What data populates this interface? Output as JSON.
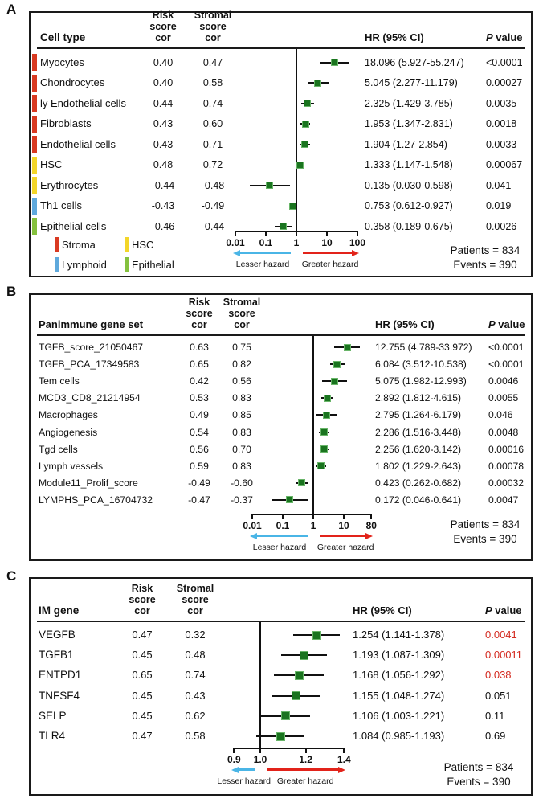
{
  "colors": {
    "marker_green": "#1a741f",
    "marker_edge": "#69b569",
    "ci_line": "#111111",
    "reference_line": "#111111",
    "stroma": "#d93a22",
    "hsc": "#f3d629",
    "lymphoid": "#5fa9dc",
    "epithelial": "#85c13e",
    "p_highlight": "#d42a20",
    "lesser_arrow": "#4ab5e6",
    "greater_arrow": "#e2231a"
  },
  "chart_data": [
    {
      "type": "forest",
      "letter": "A",
      "label_header": "Cell type",
      "risk_header": "Risk\nscore\ncor",
      "stromal_header": "Stromal\nscore\ncor",
      "hr_header": "HR (95% CI)",
      "p_header_italic": "P",
      "p_header_rest": " value",
      "axis": {
        "scale": "log",
        "ticks": [
          "0.01",
          "0.1",
          "1",
          "10",
          "100"
        ],
        "tick_values": [
          0.01,
          0.1,
          1,
          10,
          100
        ],
        "reference": 1,
        "lesser_label": "Lesser hazard",
        "greater_label": "Greater hazard"
      },
      "rows": [
        {
          "label": "Myocytes",
          "group": "stroma",
          "risk_cor": "0.40",
          "stromal_cor": "0.47",
          "hr": 18.096,
          "ci_low": 5.927,
          "ci_high": 55.247,
          "hr_ci_text": "18.096 (5.927-55.247)",
          "p_value": "<0.0001",
          "p_highlight": false
        },
        {
          "label": "Chondrocytes",
          "group": "stroma",
          "risk_cor": "0.40",
          "stromal_cor": "0.58",
          "hr": 5.045,
          "ci_low": 2.277,
          "ci_high": 11.179,
          "hr_ci_text": "5.045 (2.277-11.179)",
          "p_value": "0.00027",
          "p_highlight": false
        },
        {
          "label": "ly Endothelial cells",
          "group": "stroma",
          "risk_cor": "0.44",
          "stromal_cor": "0.74",
          "hr": 2.325,
          "ci_low": 1.429,
          "ci_high": 3.785,
          "hr_ci_text": "2.325 (1.429-3.785)",
          "p_value": "0.0035",
          "p_highlight": false
        },
        {
          "label": "Fibroblasts",
          "group": "stroma",
          "risk_cor": "0.43",
          "stromal_cor": "0.60",
          "hr": 1.953,
          "ci_low": 1.347,
          "ci_high": 2.831,
          "hr_ci_text": "1.953 (1.347-2.831)",
          "p_value": "0.0018",
          "p_highlight": false
        },
        {
          "label": "Endothelial cells",
          "group": "stroma",
          "risk_cor": "0.43",
          "stromal_cor": "0.71",
          "hr": 1.904,
          "ci_low": 1.27,
          "ci_high": 2.854,
          "hr_ci_text": "1.904 (1.27-2.854)",
          "p_value": "0.0033",
          "p_highlight": false
        },
        {
          "label": "HSC",
          "group": "hsc",
          "risk_cor": "0.48",
          "stromal_cor": "0.72",
          "hr": 1.333,
          "ci_low": 1.147,
          "ci_high": 1.548,
          "hr_ci_text": "1.333 (1.147-1.548)",
          "p_value": "0.00067",
          "p_highlight": false
        },
        {
          "label": "Erythrocytes",
          "group": "hsc",
          "risk_cor": "-0.44",
          "stromal_cor": "-0.48",
          "hr": 0.135,
          "ci_low": 0.03,
          "ci_high": 0.598,
          "hr_ci_text": "0.135 (0.030-0.598)",
          "p_value": "0.041",
          "p_highlight": false
        },
        {
          "label": "Th1 cells",
          "group": "lymphoid",
          "risk_cor": "-0.43",
          "stromal_cor": "-0.49",
          "hr": 0.753,
          "ci_low": 0.612,
          "ci_high": 0.927,
          "hr_ci_text": "0.753 (0.612-0.927)",
          "p_value": "0.019",
          "p_highlight": false
        },
        {
          "label": "Epithelial cells",
          "group": "epithelial",
          "risk_cor": "-0.46",
          "stromal_cor": "-0.44",
          "hr": 0.358,
          "ci_low": 0.189,
          "ci_high": 0.675,
          "hr_ci_text": "0.358 (0.189-0.675)",
          "p_value": "0.0026",
          "p_highlight": false
        }
      ],
      "legend": [
        {
          "label": "Stroma",
          "color_key": "stroma"
        },
        {
          "label": "HSC",
          "color_key": "hsc"
        },
        {
          "label": "Lymphoid",
          "color_key": "lymphoid"
        },
        {
          "label": "Epithelial",
          "color_key": "epithelial"
        }
      ],
      "patients": "Patients = 834",
      "events": "Events = 390"
    },
    {
      "type": "forest",
      "letter": "B",
      "label_header": "Panimmune gene set",
      "risk_header": "Risk\nscore\ncor",
      "stromal_header": "Stromal\nscore\ncor",
      "hr_header": "HR (95% CI)",
      "p_header_italic": "P",
      "p_header_rest": " value",
      "axis": {
        "scale": "log",
        "ticks": [
          "0.01",
          "0.1",
          "1",
          "10",
          "80"
        ],
        "tick_values": [
          0.01,
          0.1,
          1,
          10,
          80
        ],
        "reference": 1,
        "lesser_label": "Lesser hazard",
        "greater_label": "Greater hazard"
      },
      "rows": [
        {
          "label": "TGFB_score_21050467",
          "risk_cor": "0.63",
          "stromal_cor": "0.75",
          "hr": 12.755,
          "ci_low": 4.789,
          "ci_high": 33.972,
          "hr_ci_text": "12.755 (4.789-33.972)",
          "p_value": "<0.0001",
          "p_highlight": false
        },
        {
          "label": "TGFB_PCA_17349583",
          "risk_cor": "0.65",
          "stromal_cor": "0.82",
          "hr": 6.084,
          "ci_low": 3.512,
          "ci_high": 10.538,
          "hr_ci_text": "6.084 (3.512-10.538)",
          "p_value": "<0.0001",
          "p_highlight": false
        },
        {
          "label": "Tem cells",
          "risk_cor": "0.42",
          "stromal_cor": "0.56",
          "hr": 5.075,
          "ci_low": 1.982,
          "ci_high": 12.993,
          "hr_ci_text": "5.075 (1.982-12.993)",
          "p_value": "0.0046",
          "p_highlight": false
        },
        {
          "label": "MCD3_CD8_21214954",
          "risk_cor": "0.53",
          "stromal_cor": "0.83",
          "hr": 2.892,
          "ci_low": 1.812,
          "ci_high": 4.615,
          "hr_ci_text": "2.892 (1.812-4.615)",
          "p_value": "0.0055",
          "p_highlight": false
        },
        {
          "label": "Macrophages",
          "risk_cor": "0.49",
          "stromal_cor": "0.85",
          "hr": 2.795,
          "ci_low": 1.264,
          "ci_high": 6.179,
          "hr_ci_text": "2.795 (1.264-6.179)",
          "p_value": "0.046",
          "p_highlight": false
        },
        {
          "label": "Angiogenesis",
          "risk_cor": "0.54",
          "stromal_cor": "0.83",
          "hr": 2.286,
          "ci_low": 1.516,
          "ci_high": 3.448,
          "hr_ci_text": "2.286 (1.516-3.448)",
          "p_value": "0.0048",
          "p_highlight": false
        },
        {
          "label": "Tgd cells",
          "risk_cor": "0.56",
          "stromal_cor": "0.70",
          "hr": 2.256,
          "ci_low": 1.62,
          "ci_high": 3.142,
          "hr_ci_text": "2.256 (1.620-3.142)",
          "p_value": "0.00016",
          "p_highlight": false
        },
        {
          "label": "Lymph vessels",
          "risk_cor": "0.59",
          "stromal_cor": "0.83",
          "hr": 1.802,
          "ci_low": 1.229,
          "ci_high": 2.643,
          "hr_ci_text": "1.802 (1.229-2.643)",
          "p_value": "0.00078",
          "p_highlight": false
        },
        {
          "label": "Module11_Prolif_score",
          "risk_cor": "-0.49",
          "stromal_cor": "-0.60",
          "hr": 0.423,
          "ci_low": 0.262,
          "ci_high": 0.682,
          "hr_ci_text": "0.423 (0.262-0.682)",
          "p_value": "0.00032",
          "p_highlight": false
        },
        {
          "label": "LYMPHS_PCA_16704732",
          "risk_cor": "-0.47",
          "stromal_cor": "-0.37",
          "hr": 0.172,
          "ci_low": 0.046,
          "ci_high": 0.641,
          "hr_ci_text": "0.172 (0.046-0.641)",
          "p_value": "0.0047",
          "p_highlight": false
        }
      ],
      "patients": "Patients = 834",
      "events": "Events = 390"
    },
    {
      "type": "forest",
      "letter": "C",
      "label_header": "IM gene",
      "risk_header": "Risk\nscore\ncor",
      "stromal_header": "Stromal\nscore\ncor",
      "hr_header": "HR (95% CI)",
      "p_header_italic": "P",
      "p_header_rest": " value",
      "axis": {
        "scale": "log",
        "ticks": [
          "0.9",
          "1.0",
          "1.2",
          "1.4"
        ],
        "tick_values": [
          0.9,
          1.0,
          1.2,
          1.4
        ],
        "reference": 1,
        "lesser_label": "Lesser hazard",
        "greater_label": "Greater hazard"
      },
      "rows": [
        {
          "label": "VEGFB",
          "risk_cor": "0.47",
          "stromal_cor": "0.32",
          "hr": 1.254,
          "ci_low": 1.141,
          "ci_high": 1.378,
          "hr_ci_text": "1.254 (1.141-1.378)",
          "p_value": "0.0041",
          "p_highlight": true
        },
        {
          "label": "TGFB1",
          "risk_cor": "0.45",
          "stromal_cor": "0.48",
          "hr": 1.193,
          "ci_low": 1.087,
          "ci_high": 1.309,
          "hr_ci_text": "1.193 (1.087-1.309)",
          "p_value": "0.00011",
          "p_highlight": true
        },
        {
          "label": "ENTPD1",
          "risk_cor": "0.65",
          "stromal_cor": "0.74",
          "hr": 1.168,
          "ci_low": 1.056,
          "ci_high": 1.292,
          "hr_ci_text": "1.168 (1.056-1.292)",
          "p_value": "0.038",
          "p_highlight": true
        },
        {
          "label": "TNFSF4",
          "risk_cor": "0.45",
          "stromal_cor": "0.43",
          "hr": 1.155,
          "ci_low": 1.048,
          "ci_high": 1.274,
          "hr_ci_text": "1.155 (1.048-1.274)",
          "p_value": "0.051",
          "p_highlight": false
        },
        {
          "label": "SELP",
          "risk_cor": "0.45",
          "stromal_cor": "0.62",
          "hr": 1.106,
          "ci_low": 1.003,
          "ci_high": 1.221,
          "hr_ci_text": "1.106 (1.003-1.221)",
          "p_value": "0.11",
          "p_highlight": false
        },
        {
          "label": "TLR4",
          "risk_cor": "0.47",
          "stromal_cor": "0.58",
          "hr": 1.084,
          "ci_low": 0.985,
          "ci_high": 1.193,
          "hr_ci_text": "1.084 (0.985-1.193)",
          "p_value": "0.69",
          "p_highlight": false
        }
      ],
      "patients": "Patients = 834",
      "events": "Events = 390"
    }
  ]
}
